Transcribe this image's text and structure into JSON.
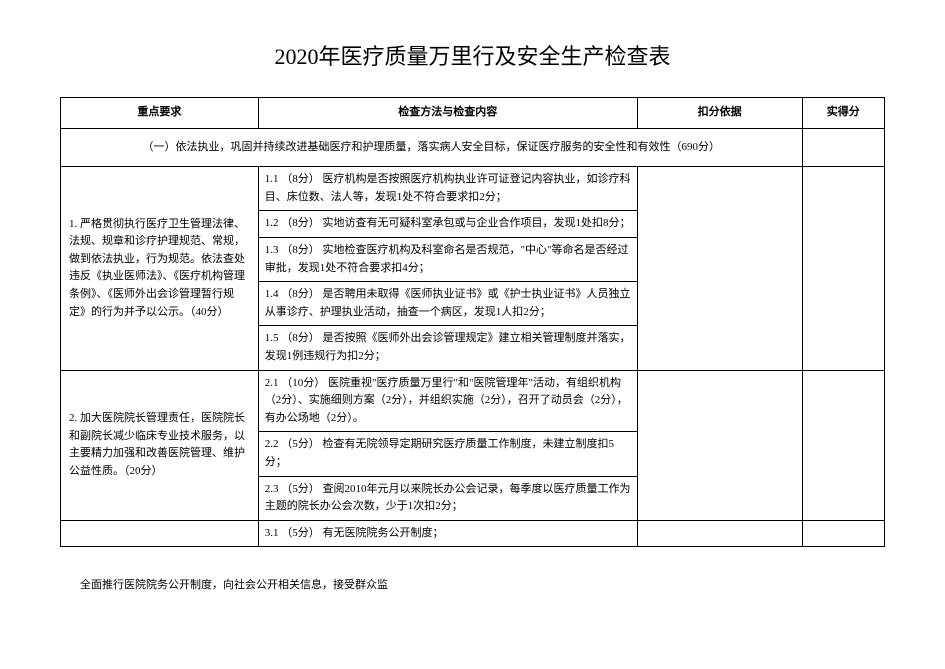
{
  "title": "2020年医疗质量万里行及安全生产检查表",
  "headers": {
    "requirement": "重点要求",
    "method": "检查方法与检查内容",
    "basis": "扣分依据",
    "score": "实得分"
  },
  "section1": "（一）依法执业，巩固并持续改进基础医疗和护理质量，落实病人安全目标，保证医疗服务的安全性和有效性（690分）",
  "row1": {
    "requirement": "1.  严格贯彻执行医疗卫生管理法律、法规、规章和诊疗护理规范、常规，做到依法执业，行为规范。依法查处违反《执业医师法》、《医疗机构管理条例》、《医师外出会诊管理暂行规定》的行为并予以公示。（40分）",
    "methods": {
      "m1": "1.1 （8分） 医疗机构是否按照医疗机构执业许可证登记内容执业，如诊疗科目、床位数、法人等，发现1处不符合要求扣2分；",
      "m2": "1.2 （8分） 实地访查有无可疑科室承包或与企业合作项目，发现1处扣8分；",
      "m3": "1.3 （8分） 实地检查医疗机构及科室命名是否规范，\"中心\"等命名是否经过审批，发现1处不符合要求扣4分；",
      "m4": "1.4 （8分） 是否聘用未取得《医师执业证书》或《护士执业证书》人员独立从事诊疗、护理执业活动，抽查一个病区，发现1人扣2分；",
      "m5": "1.5 （8分） 是否按照《医师外出会诊管理规定》建立相关管理制度并落实，发现1例违规行为扣2分；"
    }
  },
  "row2": {
    "requirement": "2. 加大医院院长管理责任，医院院长和副院长减少临床专业技术服务，以主要精力加强和改善医院管理、维护公益性质。（20分）",
    "methods": {
      "m1": "2.1 （10分） 医院重视\"医疗质量万里行\"和\"医院管理年\"活动，有组织机构（2分）、实施细则方案（2分），并组织实施（2分），召开了动员会（2分），有办公场地（2分）。",
      "m2": "2.2 （5分） 检查有无院领导定期研究医疗质量工作制度，未建立制度扣5分；",
      "m3": "2.3 （5分） 查阅2010年元月以来院长办公会记录，每季度以医疗质量工作为主题的院长办公会次数，少于1次扣2分；"
    }
  },
  "row3": {
    "methods": {
      "m1": "3.1 （5分） 有无医院院务公开制度；"
    }
  },
  "footer": "全面推行医院院务公开制度，向社会公开相关信息，接受群众监"
}
